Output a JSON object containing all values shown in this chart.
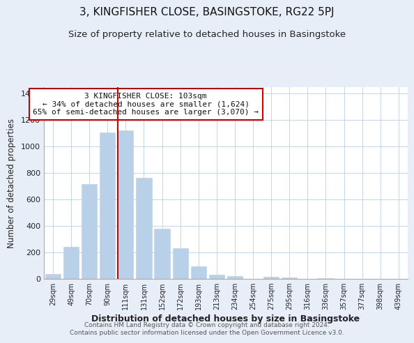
{
  "title": "3, KINGFISHER CLOSE, BASINGSTOKE, RG22 5PJ",
  "subtitle": "Size of property relative to detached houses in Basingstoke",
  "xlabel": "Distribution of detached houses by size in Basingstoke",
  "ylabel": "Number of detached properties",
  "categories": [
    "29sqm",
    "49sqm",
    "70sqm",
    "90sqm",
    "111sqm",
    "131sqm",
    "152sqm",
    "172sqm",
    "193sqm",
    "213sqm",
    "234sqm",
    "254sqm",
    "275sqm",
    "295sqm",
    "316sqm",
    "336sqm",
    "357sqm",
    "377sqm",
    "398sqm",
    "439sqm"
  ],
  "values": [
    35,
    240,
    715,
    1105,
    1120,
    760,
    375,
    230,
    90,
    30,
    20,
    0,
    15,
    10,
    0,
    5,
    0,
    0,
    0,
    0
  ],
  "bar_color": "#b8d0e8",
  "bar_edge_color": "#b8d0e8",
  "highlight_bar_index": 4,
  "highlight_color": "#cc0000",
  "annotation_title": "3 KINGFISHER CLOSE: 103sqm",
  "annotation_line1": "← 34% of detached houses are smaller (1,624)",
  "annotation_line2": "65% of semi-detached houses are larger (3,070) →",
  "annotation_box_color": "#ffffff",
  "annotation_box_edge": "#cc0000",
  "ylim": [
    0,
    1450
  ],
  "yticks": [
    0,
    200,
    400,
    600,
    800,
    1000,
    1200,
    1400
  ],
  "footer1": "Contains HM Land Registry data © Crown copyright and database right 2024.",
  "footer2": "Contains public sector information licensed under the Open Government Licence v3.0.",
  "background_color": "#e8eef8",
  "plot_bg_color": "#ffffff",
  "grid_color": "#c5d5e8",
  "title_fontsize": 11,
  "subtitle_fontsize": 9.5
}
